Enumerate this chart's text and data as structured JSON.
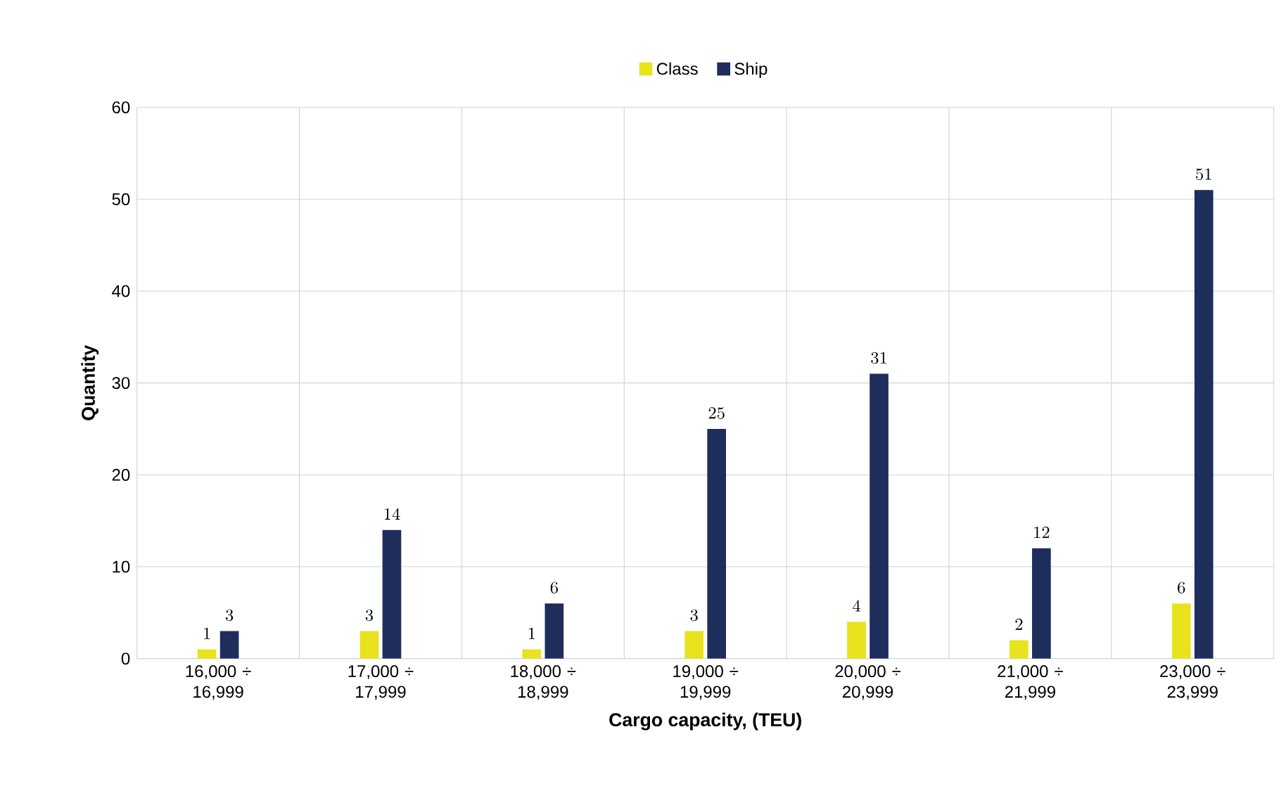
{
  "chart_data": {
    "type": "bar",
    "xlabel": "Cargo capacity, (TEU)",
    "ylabel": "Quantity",
    "categories": [
      "16,000 ÷ 16,999",
      "17,000 ÷ 17,999",
      "18,000 ÷ 18,999",
      "19,000 ÷ 19,999",
      "20,000 ÷ 20,999",
      "21,000 ÷ 21,999",
      "23,000 ÷ 23,999"
    ],
    "series": [
      {
        "name": "Class",
        "color": "#e8e31c",
        "values": [
          1,
          3,
          1,
          3,
          4,
          2,
          6
        ]
      },
      {
        "name": "Ship",
        "color": "#1f2d5c",
        "values": [
          3,
          14,
          6,
          25,
          31,
          12,
          51
        ]
      }
    ],
    "ylim": [
      0,
      60
    ],
    "yticks": [
      0,
      10,
      20,
      30,
      40,
      50,
      60
    ],
    "grid": true,
    "legend": "top",
    "data_labels": true
  }
}
